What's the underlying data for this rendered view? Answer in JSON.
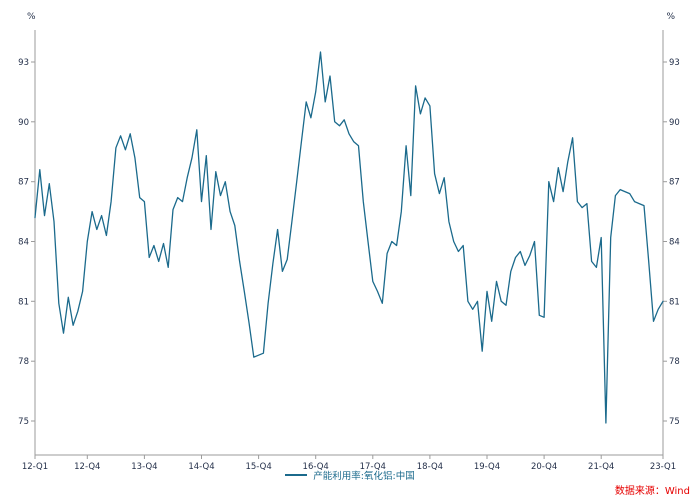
{
  "chart": {
    "unit_left": "%",
    "unit_right": "%",
    "legend_label": "产能利用率:氧化铝:中国",
    "source": "数据来源：Wind"
  },
  "chart_data": {
    "type": "line",
    "title": "",
    "xlabel": "",
    "ylabel": "%",
    "ylim": [
      75,
      93
    ],
    "grid": false,
    "legend_position": "bottom-center",
    "source_text": "数据来源：Wind",
    "source_color": "#e60000",
    "y_ticks": [
      75,
      78,
      81,
      84,
      87,
      90,
      93
    ],
    "x_tick_labels": [
      "12-Q1",
      "12-Q4",
      "13-Q4",
      "14-Q4",
      "15-Q4",
      "16-Q4",
      "17-Q4",
      "18-Q4",
      "19-Q4",
      "20-Q4",
      "21-Q4",
      "23-Q1"
    ],
    "x_tick_indices": [
      0,
      11,
      23,
      35,
      47,
      59,
      71,
      83,
      95,
      107,
      119,
      132
    ],
    "frequency_hint": "monthly",
    "series": [
      {
        "name": "产能利用率:氧化铝:中国",
        "color": "#1b6a8c",
        "values": [
          85.2,
          87.6,
          85.3,
          86.9,
          85.0,
          80.9,
          79.4,
          81.2,
          79.8,
          80.5,
          81.5,
          84.0,
          85.5,
          84.6,
          85.3,
          84.3,
          86.0,
          88.7,
          89.3,
          88.6,
          89.4,
          88.2,
          86.2,
          86.0,
          83.2,
          83.8,
          83.0,
          83.9,
          82.7,
          85.6,
          86.2,
          86.0,
          87.2,
          88.2,
          89.6,
          86.0,
          88.3,
          84.6,
          87.5,
          86.3,
          87.0,
          85.5,
          84.8,
          83.0,
          81.5,
          79.9,
          78.2,
          78.3,
          78.4,
          80.9,
          82.9,
          84.6,
          82.5,
          83.1,
          85.0,
          87.0,
          89.0,
          91.0,
          90.2,
          91.5,
          93.5,
          91.0,
          92.3,
          90.0,
          89.8,
          90.1,
          89.4,
          89.0,
          88.8,
          86.0,
          84.0,
          82.0,
          81.5,
          80.9,
          83.4,
          84.0,
          83.8,
          85.5,
          88.8,
          86.3,
          91.8,
          90.4,
          91.2,
          90.8,
          87.4,
          86.4,
          87.2,
          85.0,
          84.0,
          83.5,
          83.8,
          81.0,
          80.6,
          81.0,
          78.5,
          81.5,
          80.0,
          82.0,
          81.0,
          80.8,
          82.5,
          83.2,
          83.5,
          82.8,
          83.3,
          84.0,
          80.3,
          80.2,
          87.0,
          86.0,
          87.7,
          86.5,
          88.0,
          89.2,
          86.0,
          85.7,
          85.9,
          83.0,
          82.7,
          84.2,
          74.9,
          84.2,
          86.3,
          86.6,
          86.5,
          86.4,
          86.0,
          85.9,
          85.8,
          83.0,
          80.0,
          80.6,
          81.0
        ]
      }
    ]
  }
}
